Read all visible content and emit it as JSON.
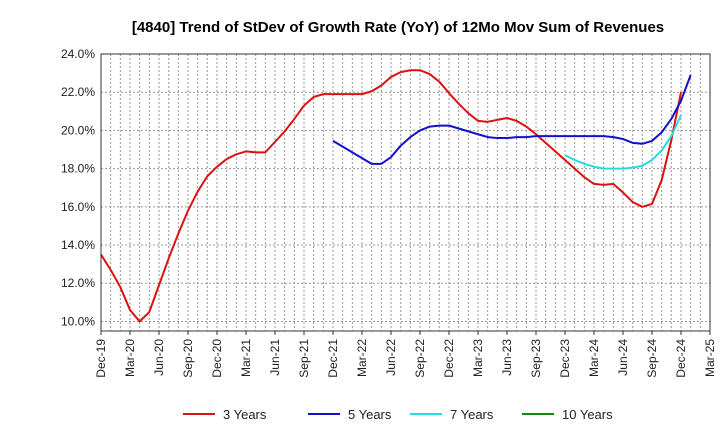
{
  "chart_data": {
    "type": "line",
    "title": "[4840]  Trend of StDev of Growth Rate (YoY) of 12Mo Mov Sum of Revenues",
    "xlabel": "",
    "ylabel": "",
    "ylim": [
      9.5,
      24.0
    ],
    "y_ticks": [
      10.0,
      12.0,
      14.0,
      16.0,
      18.0,
      20.0,
      22.0,
      24.0
    ],
    "y_tick_labels": [
      "10.0%",
      "12.0%",
      "14.0%",
      "16.0%",
      "18.0%",
      "20.0%",
      "22.0%",
      "24.0%"
    ],
    "x_tick_labels": [
      "Dec-19",
      "Mar-20",
      "Jun-20",
      "Sep-20",
      "Dec-20",
      "Mar-21",
      "Jun-21",
      "Sep-21",
      "Dec-21",
      "Mar-22",
      "Jun-22",
      "Sep-22",
      "Dec-22",
      "Mar-23",
      "Jun-23",
      "Sep-23",
      "Dec-23",
      "Mar-24",
      "Jun-24",
      "Sep-24",
      "Dec-24",
      "Mar-25"
    ],
    "x_months_total": 63,
    "grid": true,
    "legend_position": "bottom",
    "series": [
      {
        "name": "3 Years",
        "color": "#dd1111",
        "start_month": 0,
        "values": [
          13.5,
          12.7,
          11.8,
          10.6,
          10.0,
          10.5,
          11.9,
          13.3,
          14.6,
          15.8,
          16.8,
          17.6,
          18.1,
          18.5,
          18.75,
          18.9,
          18.85,
          18.85,
          19.4,
          19.95,
          20.6,
          21.3,
          21.75,
          21.9,
          21.9,
          21.9,
          21.9,
          21.9,
          22.05,
          22.35,
          22.8,
          23.05,
          23.15,
          23.15,
          22.95,
          22.55,
          21.95,
          21.4,
          20.9,
          20.5,
          20.45,
          20.55,
          20.65,
          20.5,
          20.2,
          19.8,
          19.35,
          18.9,
          18.45,
          18.0,
          17.55,
          17.2,
          17.15,
          17.2,
          16.75,
          16.25,
          16.0,
          16.15,
          17.4,
          19.5,
          22.0
        ]
      },
      {
        "name": "5 Years",
        "color": "#1111cc",
        "start_month": 24,
        "values": [
          19.45,
          19.15,
          18.85,
          18.55,
          18.25,
          18.25,
          18.6,
          19.2,
          19.65,
          20.0,
          20.2,
          20.25,
          20.25,
          20.1,
          19.95,
          19.8,
          19.65,
          19.6,
          19.6,
          19.65,
          19.65,
          19.7,
          19.7,
          19.7,
          19.7,
          19.7,
          19.7,
          19.7,
          19.7,
          19.65,
          19.55,
          19.35,
          19.3,
          19.45,
          19.9,
          20.6,
          21.55,
          22.9
        ]
      },
      {
        "name": "7 Years",
        "color": "#22dddd",
        "start_month": 48,
        "values": [
          18.7,
          18.45,
          18.25,
          18.1,
          18.0,
          18.0,
          18.0,
          18.05,
          18.15,
          18.45,
          18.95,
          19.7,
          20.8
        ]
      },
      {
        "name": "10 Years",
        "color": "#118811",
        "start_month": 0,
        "values": []
      }
    ]
  }
}
